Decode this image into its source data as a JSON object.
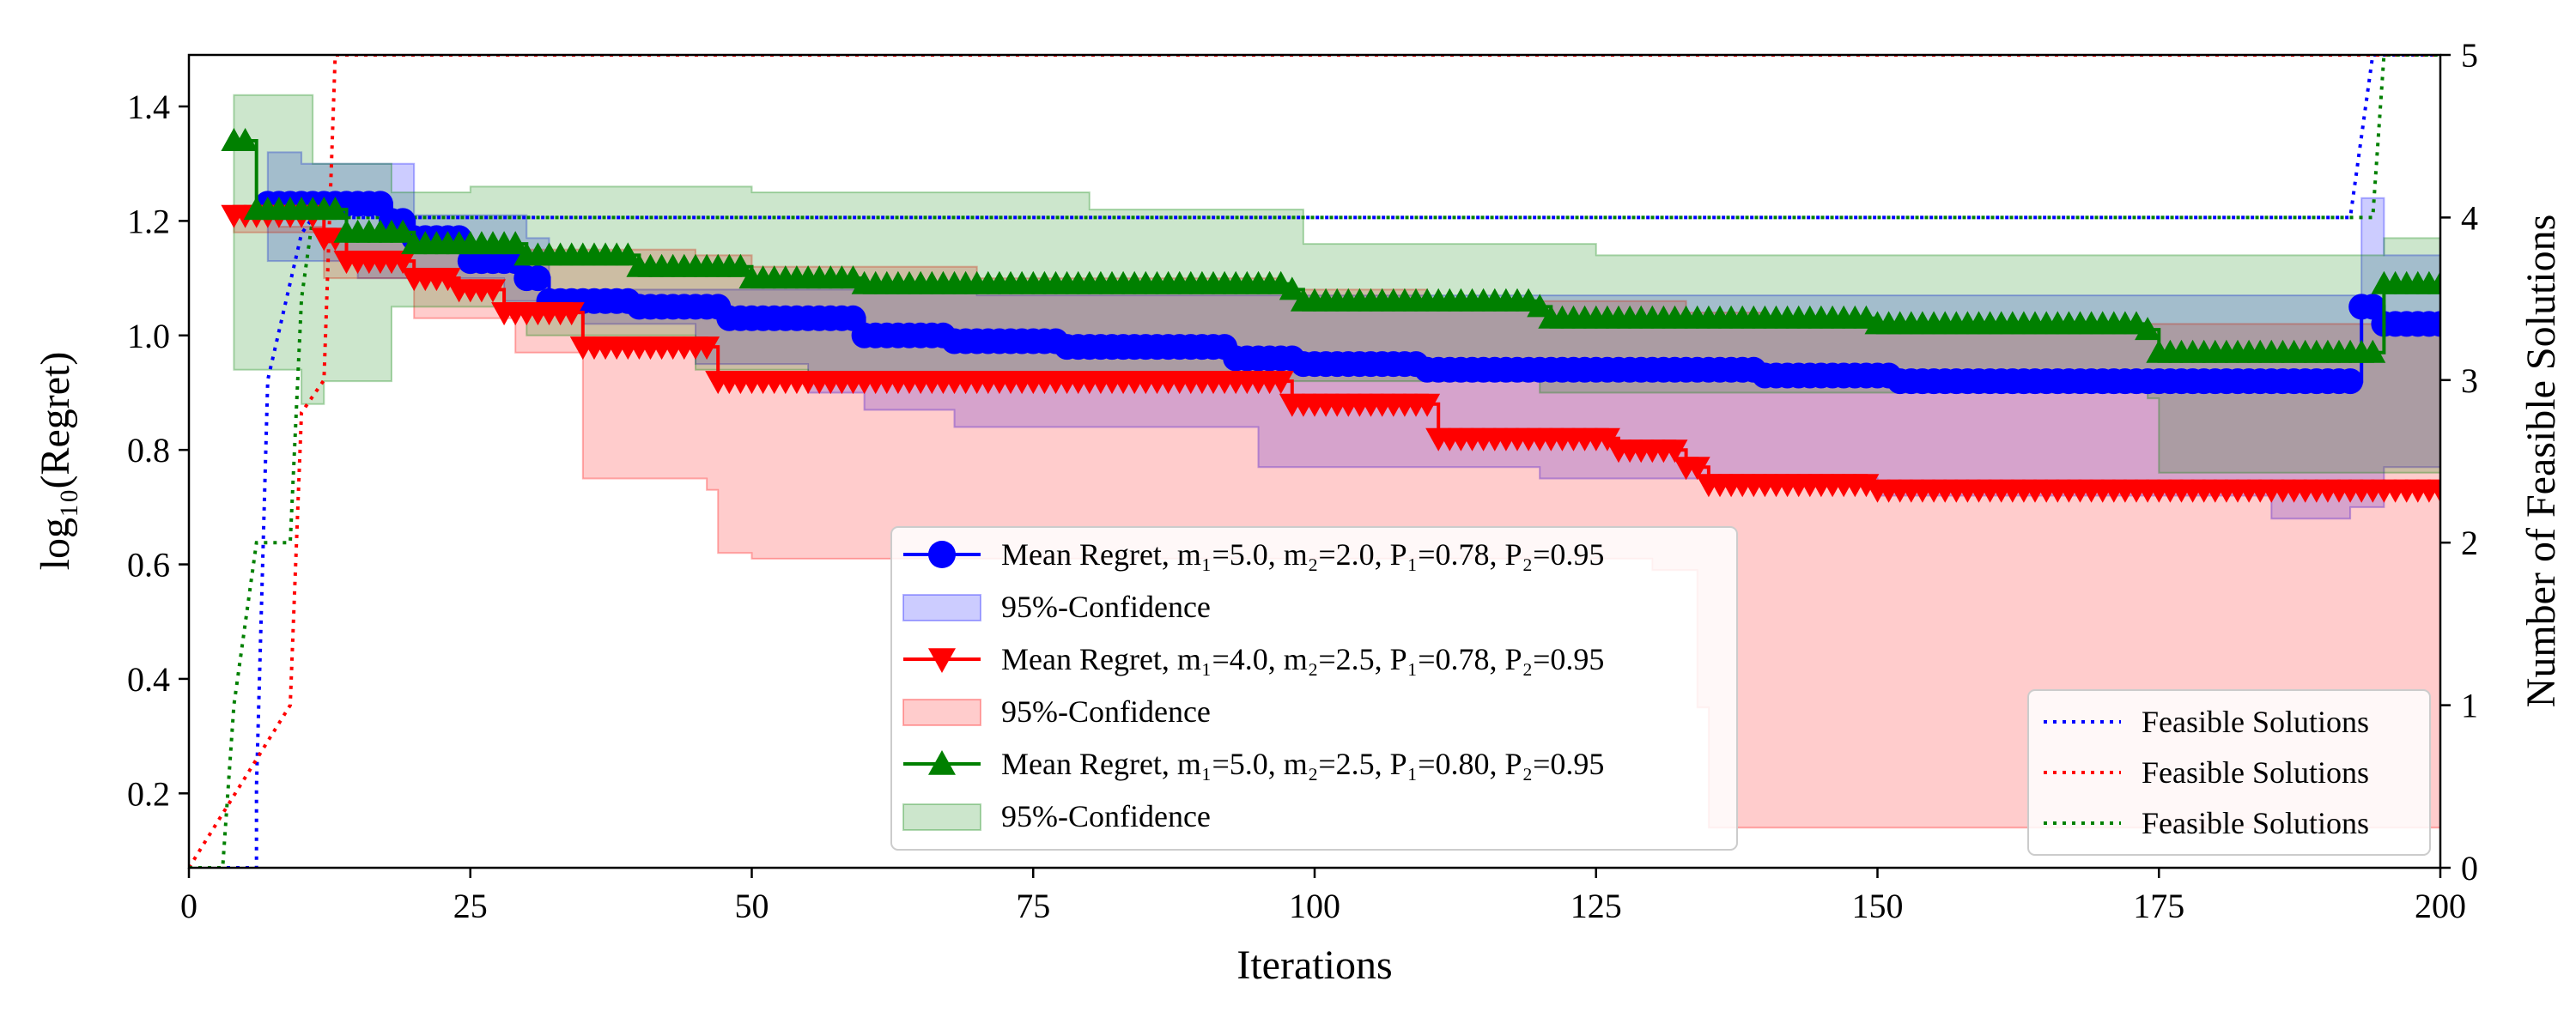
{
  "chart_data": {
    "type": "line",
    "xlabel": "Iterations",
    "ylabel_left": "log₁₀(Regret)",
    "ylabel_right": "Number of Feasible Solutions",
    "xlim": [
      0,
      200
    ],
    "ylim_left": [
      0.07,
      1.49
    ],
    "ylim_right": [
      0,
      5
    ],
    "xticks": [
      0,
      25,
      50,
      75,
      100,
      125,
      150,
      175,
      200
    ],
    "yticks_left": [
      0.2,
      0.4,
      0.6,
      0.8,
      1.0,
      1.2,
      1.4
    ],
    "yticks_right": [
      0,
      1,
      2,
      3,
      4,
      5
    ],
    "colors": {
      "blue": "#0000ff",
      "red": "#ff0000",
      "green": "#008000"
    },
    "series": [
      {
        "name": "Mean Regret, m₁=5.0, m₂=2.0, P₁=0.78, P₂=0.95",
        "color": "blue",
        "marker": "circle",
        "start": 7,
        "mean": [
          [
            7,
            1.23
          ],
          [
            18,
            1.2
          ],
          [
            20,
            1.17
          ],
          [
            25,
            1.13
          ],
          [
            30,
            1.1
          ],
          [
            32,
            1.06
          ],
          [
            40,
            1.05
          ],
          [
            48,
            1.03
          ],
          [
            60,
            1.0
          ],
          [
            68,
            0.99
          ],
          [
            78,
            0.98
          ],
          [
            93,
            0.96
          ],
          [
            99,
            0.95
          ],
          [
            110,
            0.94
          ],
          [
            140,
            0.93
          ],
          [
            152,
            0.92
          ],
          [
            192,
            0.92
          ],
          [
            193,
            1.05
          ],
          [
            195,
            1.02
          ],
          [
            200,
            1.02
          ]
        ],
        "upper": [
          [
            7,
            1.32
          ],
          [
            10,
            1.3
          ],
          [
            20,
            1.21
          ],
          [
            30,
            1.17
          ],
          [
            32,
            1.08
          ],
          [
            70,
            1.07
          ],
          [
            192,
            1.07
          ],
          [
            193,
            1.24
          ],
          [
            195,
            1.14
          ],
          [
            200,
            1.14
          ]
        ],
        "lower": [
          [
            7,
            1.13
          ],
          [
            15,
            1.1
          ],
          [
            28,
            1.06
          ],
          [
            35,
            1.02
          ],
          [
            45,
            0.95
          ],
          [
            55,
            0.9
          ],
          [
            60,
            0.87
          ],
          [
            68,
            0.84
          ],
          [
            95,
            0.77
          ],
          [
            120,
            0.75
          ],
          [
            150,
            0.72
          ],
          [
            185,
            0.68
          ],
          [
            192,
            0.7
          ],
          [
            195,
            0.77
          ],
          [
            200,
            0.77
          ]
        ]
      },
      {
        "name": "Mean Regret, m₁=4.0, m₂=2.5, P₁=0.78, P₂=0.95",
        "color": "red",
        "marker": "triangle-down",
        "start": 4,
        "mean": [
          [
            4,
            1.21
          ],
          [
            12,
            1.17
          ],
          [
            14,
            1.13
          ],
          [
            20,
            1.1
          ],
          [
            24,
            1.08
          ],
          [
            28,
            1.04
          ],
          [
            35,
            0.98
          ],
          [
            46,
            0.98
          ],
          [
            47,
            0.92
          ],
          [
            97,
            0.92
          ],
          [
            98,
            0.88
          ],
          [
            110,
            0.88
          ],
          [
            111,
            0.82
          ],
          [
            127,
            0.8
          ],
          [
            133,
            0.77
          ],
          [
            135,
            0.74
          ],
          [
            150,
            0.73
          ],
          [
            200,
            0.73
          ]
        ],
        "upper": [
          [
            4,
            1.22
          ],
          [
            8,
            1.19
          ],
          [
            12,
            1.18
          ],
          [
            20,
            1.16
          ],
          [
            30,
            1.15
          ],
          [
            45,
            1.14
          ],
          [
            50,
            1.12
          ],
          [
            60,
            1.12
          ],
          [
            70,
            1.1
          ],
          [
            97,
            1.08
          ],
          [
            110,
            1.06
          ],
          [
            133,
            1.04
          ],
          [
            140,
            1.02
          ],
          [
            200,
            1.02
          ]
        ],
        "lower": [
          [
            4,
            1.18
          ],
          [
            12,
            1.1
          ],
          [
            20,
            1.03
          ],
          [
            29,
            0.97
          ],
          [
            35,
            0.75
          ],
          [
            46,
            0.73
          ],
          [
            47,
            0.62
          ],
          [
            50,
            0.61
          ],
          [
            120,
            0.61
          ],
          [
            130,
            0.59
          ],
          [
            134,
            0.35
          ],
          [
            135,
            0.14
          ],
          [
            200,
            0.14
          ]
        ]
      },
      {
        "name": "Mean Regret, m₁=5.0, m₂=2.5, P₁=0.80, P₂=0.95",
        "color": "green",
        "marker": "triangle-up",
        "start": 4,
        "mean": [
          [
            4,
            1.34
          ],
          [
            6,
            1.22
          ],
          [
            14,
            1.18
          ],
          [
            20,
            1.16
          ],
          [
            30,
            1.14
          ],
          [
            40,
            1.12
          ],
          [
            50,
            1.1
          ],
          [
            60,
            1.09
          ],
          [
            98,
            1.08
          ],
          [
            99,
            1.06
          ],
          [
            120,
            1.05
          ],
          [
            121,
            1.03
          ],
          [
            140,
            1.03
          ],
          [
            150,
            1.02
          ],
          [
            174,
            1.01
          ],
          [
            175,
            0.97
          ],
          [
            193,
            0.97
          ],
          [
            195,
            1.09
          ],
          [
            200,
            1.09
          ]
        ],
        "upper": [
          [
            6,
            1.42
          ],
          [
            9,
            1.42
          ],
          [
            11,
            1.3
          ],
          [
            18,
            1.25
          ],
          [
            25,
            1.26
          ],
          [
            50,
            1.25
          ],
          [
            80,
            1.22
          ],
          [
            99,
            1.16
          ],
          [
            125,
            1.14
          ],
          [
            174,
            1.14
          ],
          [
            193,
            1.14
          ],
          [
            195,
            1.17
          ],
          [
            200,
            1.17
          ]
        ],
        "lower": [
          [
            6,
            0.94
          ],
          [
            10,
            0.88
          ],
          [
            12,
            0.92
          ],
          [
            18,
            1.05
          ],
          [
            30,
            1.0
          ],
          [
            45,
            0.94
          ],
          [
            55,
            0.92
          ],
          [
            100,
            0.92
          ],
          [
            120,
            0.9
          ],
          [
            174,
            0.89
          ],
          [
            175,
            0.76
          ],
          [
            195,
            0.76
          ],
          [
            200,
            0.82
          ]
        ]
      }
    ],
    "feasible": [
      {
        "name": "Feasible Solutions",
        "color": "blue",
        "points": [
          [
            0,
            0
          ],
          [
            6,
            0
          ],
          [
            6,
            0.5
          ],
          [
            7,
            3
          ],
          [
            8,
            3.3
          ],
          [
            9,
            3.6
          ],
          [
            10,
            3.9
          ],
          [
            11,
            4
          ],
          [
            192,
            4
          ],
          [
            194,
            5
          ],
          [
            200,
            5
          ]
        ]
      },
      {
        "name": "Feasible Solutions",
        "color": "red",
        "points": [
          [
            0,
            0
          ],
          [
            9,
            1
          ],
          [
            10,
            2.8
          ],
          [
            12,
            3
          ],
          [
            13,
            5
          ],
          [
            200,
            5
          ]
        ]
      },
      {
        "name": "Feasible Solutions",
        "color": "green",
        "points": [
          [
            0,
            0
          ],
          [
            3,
            0
          ],
          [
            4,
            1
          ],
          [
            6,
            2
          ],
          [
            9,
            2
          ],
          [
            10,
            3.5
          ],
          [
            11,
            4
          ],
          [
            194,
            4
          ],
          [
            195,
            5
          ],
          [
            200,
            5
          ]
        ]
      }
    ],
    "legend_main": {
      "location": "lower center",
      "entries": [
        {
          "label": "Mean Regret, m₁=5.0, m₂=2.0, P₁=0.78, P₂=0.95",
          "kind": "line",
          "color": "blue",
          "marker": "circle"
        },
        {
          "label": "95%-Confidence",
          "kind": "patch",
          "color": "blue"
        },
        {
          "label": "Mean Regret, m₁=4.0, m₂=2.5, P₁=0.78, P₂=0.95",
          "kind": "line",
          "color": "red",
          "marker": "triangle-down"
        },
        {
          "label": "95%-Confidence",
          "kind": "patch",
          "color": "red"
        },
        {
          "label": "Mean Regret, m₁=5.0, m₂=2.5, P₁=0.80, P₂=0.95",
          "kind": "line",
          "color": "green",
          "marker": "triangle-up"
        },
        {
          "label": "95%-Confidence",
          "kind": "patch",
          "color": "green"
        }
      ]
    },
    "legend_feasible": {
      "location": "lower right",
      "entries": [
        {
          "label": "Feasible Solutions",
          "color": "blue"
        },
        {
          "label": "Feasible Solutions",
          "color": "red"
        },
        {
          "label": "Feasible Solutions",
          "color": "green"
        }
      ]
    }
  }
}
